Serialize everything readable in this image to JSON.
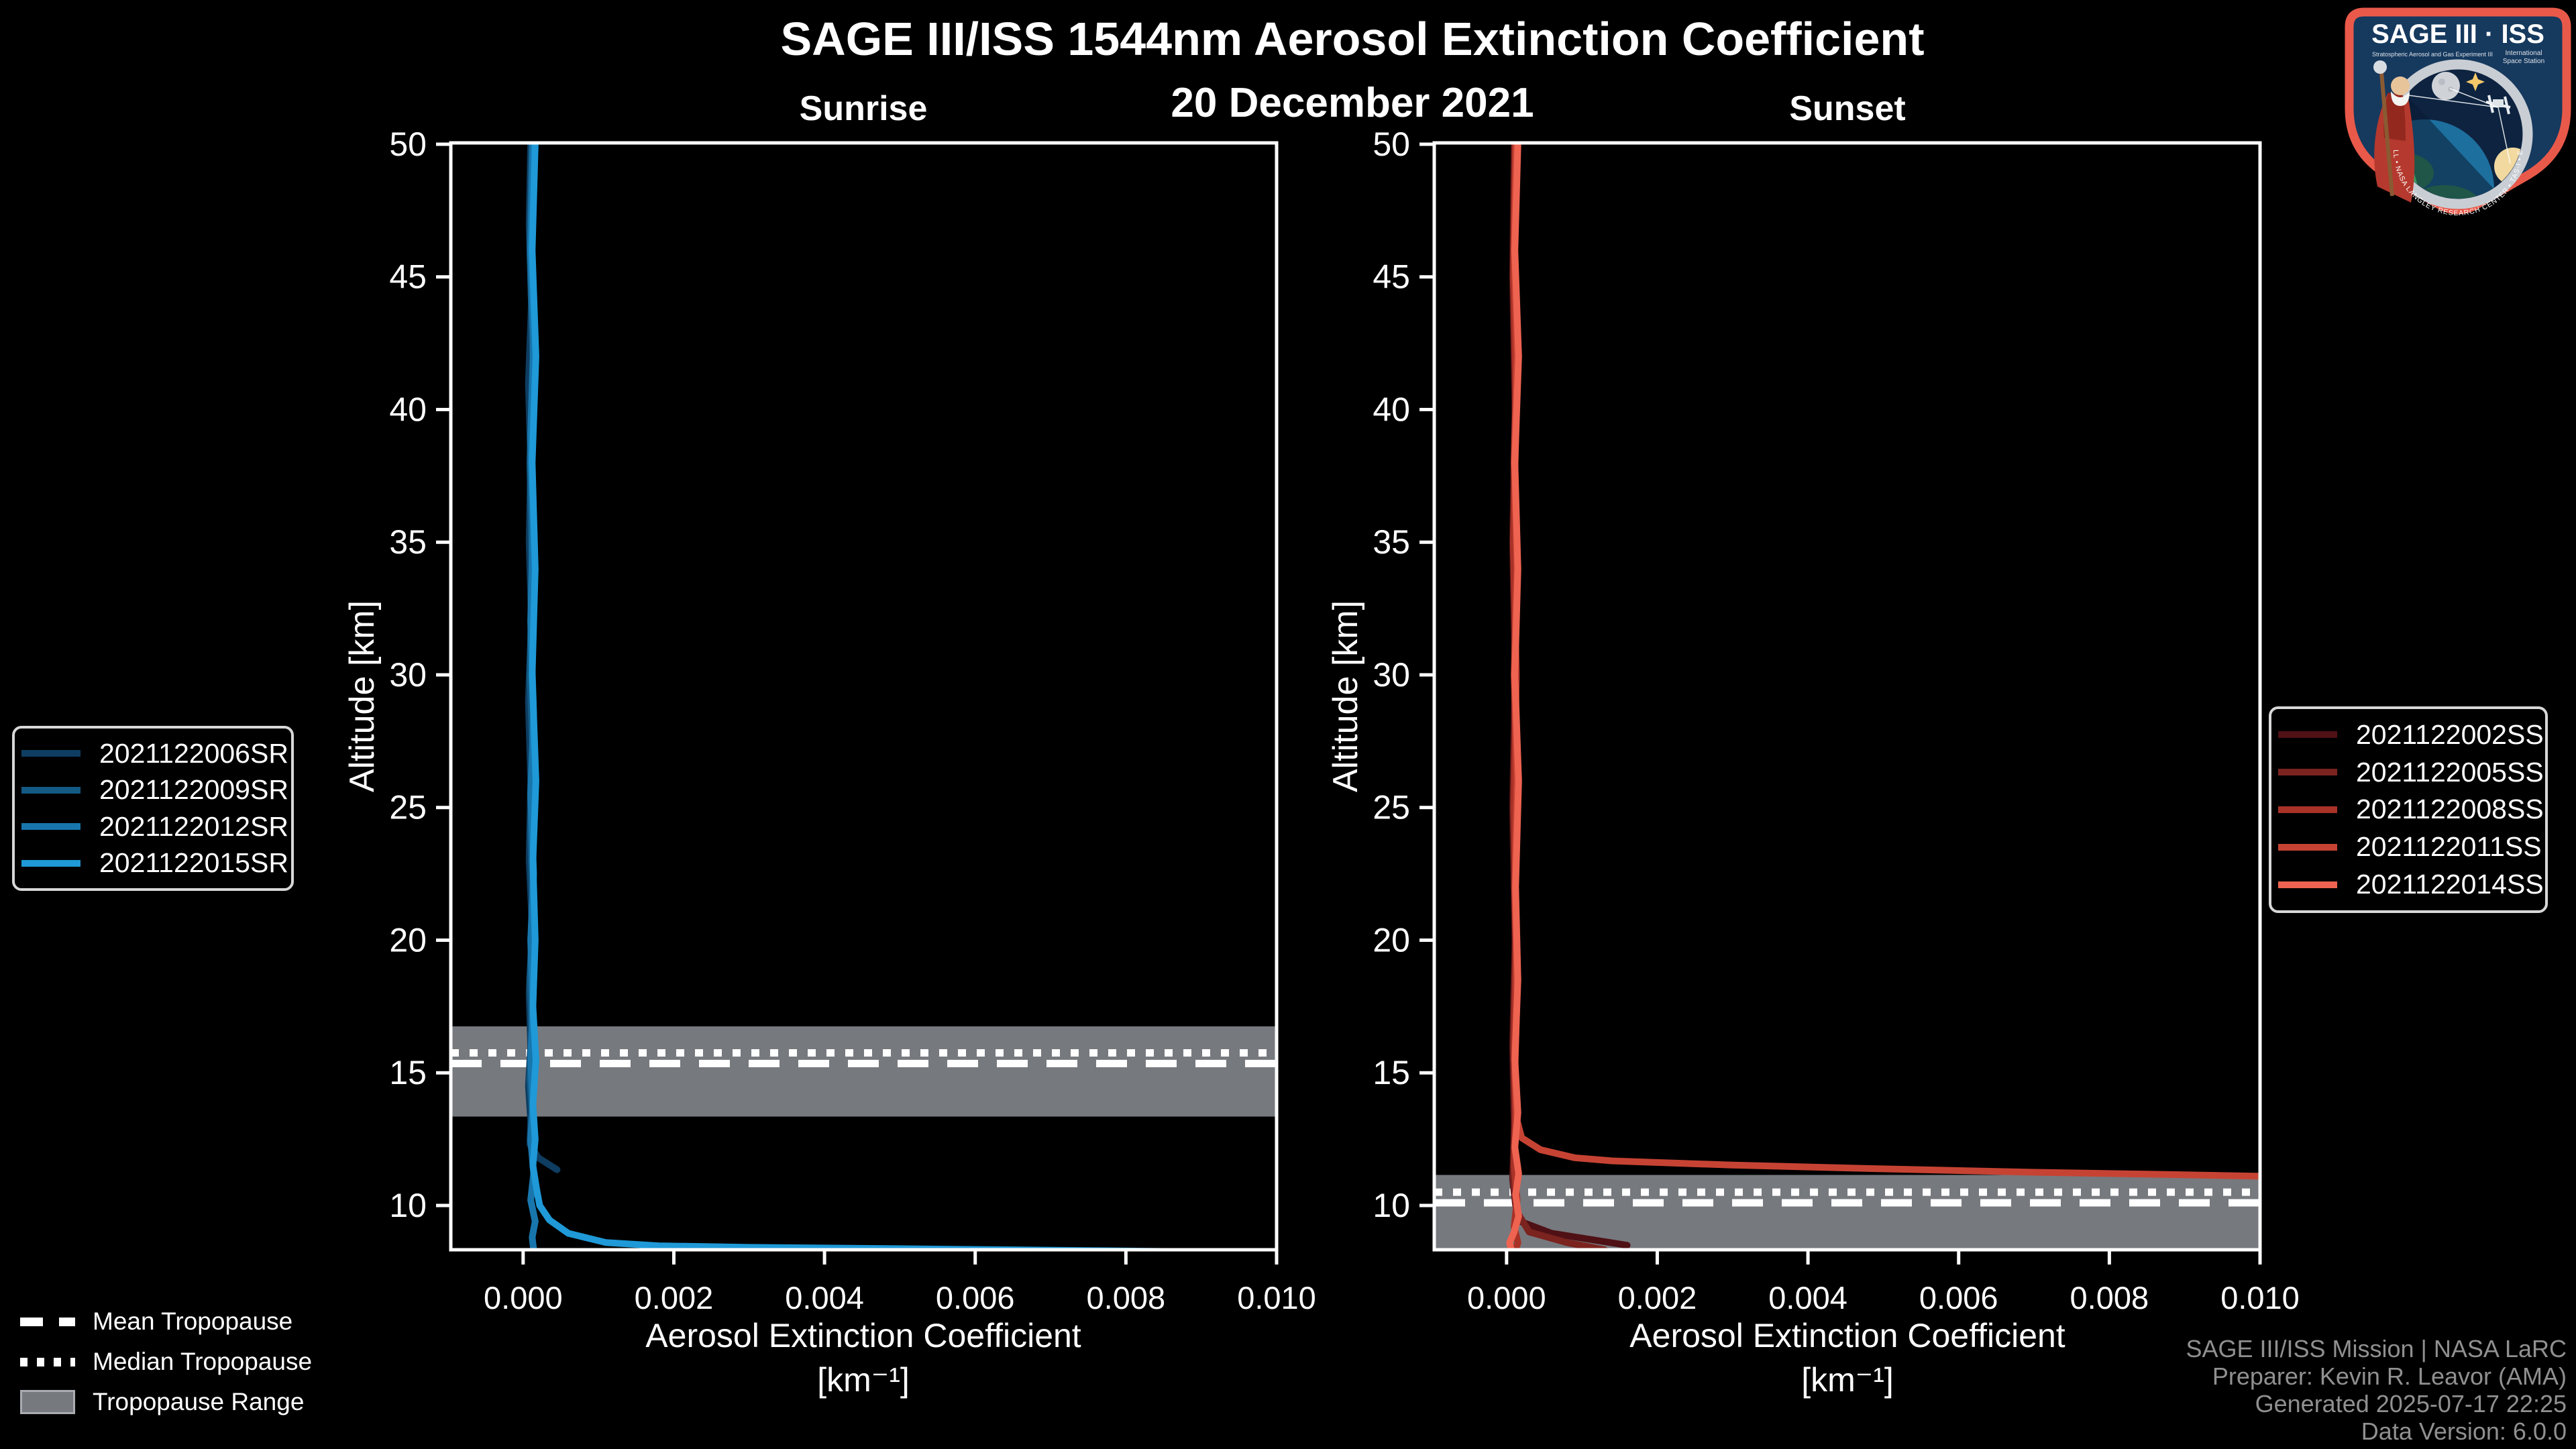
{
  "title": "SAGE III/ISS 1544nm Aerosol Extinction Coefficient",
  "subtitle_date": "20 December 2021",
  "colors": {
    "background": "#000000",
    "frame": "#ffffff",
    "tropopause_band": "#76797e",
    "tropopause_lines": "#ffffff",
    "legend_border": "#d8d8d8",
    "footer_text": "#909090",
    "logo_border": "#e8594a",
    "logo_field": "#16395e"
  },
  "axes": {
    "y_label": "Altitude [km]",
    "x_label_line1": "Aerosol Extinction Coefficient",
    "x_label_line2": "[km⁻¹]"
  },
  "tropopause_legend": {
    "mean_label": "Mean Tropopause",
    "median_label": "Median Tropopause",
    "range_label": "Tropopause Range"
  },
  "footer": {
    "line1": "SAGE III/ISS Mission | NASA LaRC",
    "line2": "Preparer: Kevin R. Leavor (AMA)",
    "line3": "Generated 2025-07-17 22:25",
    "line4": "Data Version: 6.0.0"
  },
  "logo": {
    "title": "SAGE III · ISS",
    "subtitle_left": "Stratospheric Aerosol and Gas Experiment III",
    "subtitle_right1": "International",
    "subtitle_right2": "Space Station",
    "ring_text": "BALL • NASA LANGLEY RESEARCH CENTER • TAS-I • ESA"
  },
  "chart_data": [
    {
      "type": "line",
      "title": "Sunrise",
      "xlabel": "Aerosol Extinction Coefficient [km⁻¹]",
      "ylabel": "Altitude [km]",
      "xlim": [
        -0.00096,
        0.01
      ],
      "ylim": [
        8.33,
        50.05
      ],
      "x_ticks": [
        0.0,
        0.002,
        0.004,
        0.006,
        0.008,
        0.01
      ],
      "x_tick_labels": [
        "0.000",
        "0.002",
        "0.004",
        "0.006",
        "0.008",
        "0.010"
      ],
      "y_ticks": [
        10,
        15,
        20,
        25,
        30,
        35,
        40,
        45,
        50
      ],
      "y_tick_labels": [
        "10",
        "15",
        "20",
        "25",
        "30",
        "35",
        "40",
        "45",
        "50"
      ],
      "grid": false,
      "legend_position": "outside-left",
      "tropopause": {
        "range_km": [
          13.35,
          16.75
        ],
        "median_km": 15.75,
        "mean_km": 15.35
      },
      "series": [
        {
          "name": "2021122006SR",
          "color": "#0e3d61",
          "points": [
            [
              0.0001,
              50
            ],
            [
              8e-05,
              47
            ],
            [
              0.00011,
              44
            ],
            [
              7e-05,
              41
            ],
            [
              0.0001,
              38
            ],
            [
              8e-05,
              35
            ],
            [
              0.00011,
              32
            ],
            [
              7e-05,
              29
            ],
            [
              0.0001,
              26
            ],
            [
              8e-05,
              23
            ],
            [
              0.00012,
              20.5
            ],
            [
              8e-05,
              18
            ],
            [
              0.0001,
              16
            ],
            [
              7e-05,
              14.5
            ],
            [
              0.0001,
              13.2
            ],
            [
              9e-05,
              12.3
            ],
            [
              0.0002,
              11.8
            ],
            [
              0.00045,
              11.35
            ]
          ]
        },
        {
          "name": "2021122009SR",
          "color": "#135a85",
          "points": [
            [
              0.00012,
              50
            ],
            [
              9e-05,
              46
            ],
            [
              0.00013,
              42
            ],
            [
              9e-05,
              38
            ],
            [
              0.00012,
              34
            ],
            [
              9e-05,
              30
            ],
            [
              0.00013,
              27
            ],
            [
              0.0001,
              24
            ],
            [
              0.00013,
              21
            ],
            [
              9e-05,
              18.5
            ],
            [
              0.00012,
              16.5
            ],
            [
              9e-05,
              14.8
            ],
            [
              0.00012,
              13.5
            ],
            [
              0.0001,
              12.4
            ]
          ]
        },
        {
          "name": "2021122012SR",
          "color": "#1876ad",
          "points": [
            [
              0.00013,
              50
            ],
            [
              0.0001,
              46
            ],
            [
              0.00014,
              42.5
            ],
            [
              0.0001,
              39
            ],
            [
              0.00013,
              35.5
            ],
            [
              0.0001,
              32
            ],
            [
              0.00014,
              28.5
            ],
            [
              0.0001,
              25.5
            ],
            [
              0.00014,
              22.5
            ],
            [
              0.0001,
              20
            ],
            [
              0.00013,
              17.5
            ],
            [
              0.0001,
              15.5
            ],
            [
              0.00013,
              13.8
            ],
            [
              0.0001,
              12.5
            ],
            [
              0.00014,
              11.2
            ],
            [
              0.0001,
              10.2
            ],
            [
              0.00016,
              9.4
            ],
            [
              0.00012,
              8.8
            ],
            [
              0.00014,
              8.33
            ]
          ]
        },
        {
          "name": "2021122015SR",
          "color": "#1f99d7",
          "points": [
            [
              0.00016,
              50
            ],
            [
              0.00012,
              46
            ],
            [
              0.00017,
              42
            ],
            [
              0.00012,
              38
            ],
            [
              0.00016,
              34
            ],
            [
              0.00012,
              30
            ],
            [
              0.00017,
              26
            ],
            [
              0.00013,
              23
            ],
            [
              0.00016,
              20
            ],
            [
              0.00013,
              17.5
            ],
            [
              0.00017,
              15.5
            ],
            [
              0.00013,
              13.8
            ],
            [
              0.00016,
              12.5
            ],
            [
              0.00013,
              11.5
            ],
            [
              0.00018,
              10.6
            ],
            [
              0.00022,
              10.0
            ],
            [
              0.00035,
              9.45
            ],
            [
              0.0006,
              8.95
            ],
            [
              0.0011,
              8.6
            ],
            [
              0.0018,
              8.48
            ],
            [
              0.003,
              8.42
            ],
            [
              0.005,
              8.37
            ],
            [
              0.0075,
              8.3
            ],
            [
              0.01,
              8.22
            ]
          ]
        }
      ]
    },
    {
      "type": "line",
      "title": "Sunset",
      "xlabel": "Aerosol Extinction Coefficient [km⁻¹]",
      "ylabel": "Altitude [km]",
      "xlim": [
        -0.00096,
        0.01
      ],
      "ylim": [
        8.33,
        50.05
      ],
      "x_ticks": [
        0.0,
        0.002,
        0.004,
        0.006,
        0.008,
        0.01
      ],
      "x_tick_labels": [
        "0.000",
        "0.002",
        "0.004",
        "0.006",
        "0.008",
        "0.010"
      ],
      "y_ticks": [
        10,
        15,
        20,
        25,
        30,
        35,
        40,
        45,
        50
      ],
      "y_tick_labels": [
        "10",
        "15",
        "20",
        "25",
        "30",
        "35",
        "40",
        "45",
        "50"
      ],
      "grid": false,
      "legend_position": "outside-right",
      "tropopause": {
        "range_km": [
          8.33,
          11.15
        ],
        "median_km": 10.5,
        "mean_km": 10.1
      },
      "series": [
        {
          "name": "2021122002SS",
          "color": "#4f1115",
          "points": [
            [
              0.0001,
              50
            ],
            [
              8e-05,
              45
            ],
            [
              0.00011,
              40
            ],
            [
              8e-05,
              35
            ],
            [
              0.00011,
              30
            ],
            [
              8e-05,
              25
            ],
            [
              0.00011,
              20
            ],
            [
              8e-05,
              16
            ],
            [
              0.0001,
              13
            ],
            [
              8e-05,
              11
            ],
            [
              0.00012,
              10
            ],
            [
              0.00018,
              9.4
            ],
            [
              0.0006,
              8.95
            ],
            [
              0.0016,
              8.5
            ]
          ]
        },
        {
          "name": "2021122005SS",
          "color": "#7b231f",
          "points": [
            [
              0.00011,
              50
            ],
            [
              9e-05,
              45
            ],
            [
              0.00012,
              40
            ],
            [
              9e-05,
              35
            ],
            [
              0.00012,
              30
            ],
            [
              9e-05,
              25
            ],
            [
              0.00012,
              20
            ],
            [
              9e-05,
              16
            ],
            [
              0.00011,
              13
            ],
            [
              9e-05,
              11
            ],
            [
              0.00013,
              9.8
            ],
            [
              0.0003,
              9.0
            ],
            [
              0.0008,
              8.6
            ],
            [
              0.0013,
              8.33
            ]
          ]
        },
        {
          "name": "2021122008SS",
          "color": "#a93227",
          "points": [
            [
              0.00012,
              50
            ],
            [
              9e-05,
              45
            ],
            [
              0.00013,
              40
            ],
            [
              9e-05,
              35
            ],
            [
              0.00013,
              30
            ],
            [
              0.0001,
              25
            ],
            [
              0.00013,
              20
            ],
            [
              0.0001,
              16
            ],
            [
              0.00012,
              13.5
            ],
            [
              0.0001,
              11.5
            ],
            [
              0.00014,
              10.2
            ],
            [
              0.0001,
              9.2
            ],
            [
              0.00015,
              8.6
            ],
            [
              0.00012,
              8.33
            ]
          ]
        },
        {
          "name": "2021122011SS",
          "color": "#c64334",
          "points": [
            [
              0.00013,
              50
            ],
            [
              0.0001,
              46
            ],
            [
              0.00014,
              42
            ],
            [
              0.0001,
              38
            ],
            [
              0.00014,
              34
            ],
            [
              0.0001,
              30
            ],
            [
              0.00014,
              26
            ],
            [
              0.00011,
              22
            ],
            [
              0.00014,
              18
            ],
            [
              0.00011,
              15
            ],
            [
              0.00014,
              13.2
            ],
            [
              0.0002,
              12.55
            ],
            [
              0.00045,
              12.1
            ],
            [
              0.0009,
              11.8
            ],
            [
              0.0014,
              11.68
            ],
            [
              0.003,
              11.52
            ],
            [
              0.005,
              11.38
            ],
            [
              0.007,
              11.25
            ],
            [
              0.0085,
              11.18
            ],
            [
              0.01,
              11.1
            ]
          ]
        },
        {
          "name": "2021122014SS",
          "color": "#ef6351",
          "points": [
            [
              0.00015,
              50
            ],
            [
              0.00011,
              46
            ],
            [
              0.00016,
              42
            ],
            [
              0.00011,
              38
            ],
            [
              0.00015,
              34
            ],
            [
              0.00011,
              30
            ],
            [
              0.00016,
              26
            ],
            [
              0.00012,
              22
            ],
            [
              0.00015,
              18.5
            ],
            [
              0.00011,
              15.5
            ],
            [
              0.00015,
              13.5
            ],
            [
              0.00011,
              12.2
            ],
            [
              0.00016,
              11.2
            ],
            [
              0.00012,
              10.4
            ],
            [
              0.00016,
              9.6
            ],
            [
              0.0001,
              9.0
            ],
            [
              4e-05,
              8.6
            ],
            [
              6e-05,
              8.33
            ]
          ]
        }
      ]
    }
  ]
}
